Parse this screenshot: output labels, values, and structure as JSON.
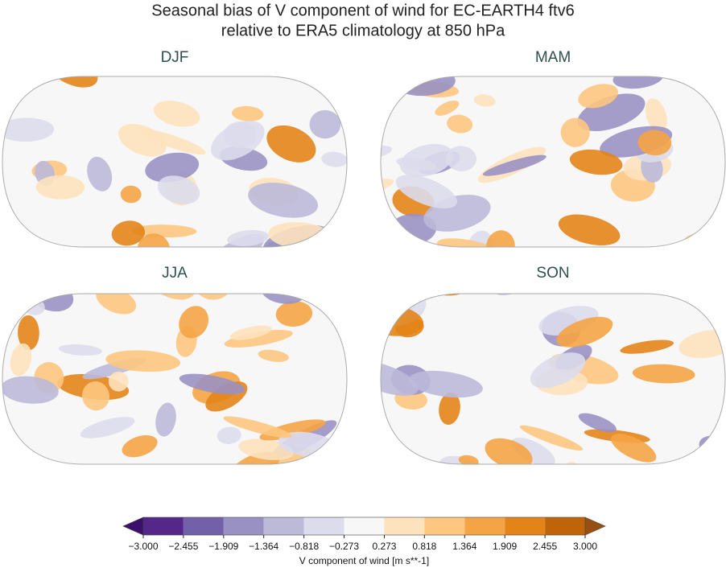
{
  "title_lines": [
    "Seasonal bias of V component of wind for EC-EARTH4 ftv6",
    "relative to ERA5 climatology at 850 hPa"
  ],
  "panels": [
    "DJF",
    "MAM",
    "JJA",
    "SON"
  ],
  "colorbar": {
    "label": "V component of wind [m s**-1]",
    "levels": [
      {
        "value": -3.0,
        "label": "−3.000"
      },
      {
        "value": -2.455,
        "label": "−2.455"
      },
      {
        "value": -1.909,
        "label": "−1.909"
      },
      {
        "value": -1.364,
        "label": "−1.364"
      },
      {
        "value": -0.818,
        "label": "−0.818"
      },
      {
        "value": -0.273,
        "label": "−0.273"
      },
      {
        "value": 0.273,
        "label": "0.273"
      },
      {
        "value": 0.818,
        "label": "0.818"
      },
      {
        "value": 1.364,
        "label": "1.364"
      },
      {
        "value": 1.909,
        "label": "1.909"
      },
      {
        "value": 2.455,
        "label": "2.455"
      },
      {
        "value": 3.0,
        "label": "3.000"
      }
    ],
    "colors": [
      "#542788",
      "#7260a8",
      "#9a91c3",
      "#bcb9d9",
      "#dcdcec",
      "#f7f7f7",
      "#fde2be",
      "#fdc780",
      "#f5a445",
      "#e38418",
      "#c0640a"
    ],
    "under_color": "#3b0f6b",
    "over_color": "#9a4f12"
  }
}
